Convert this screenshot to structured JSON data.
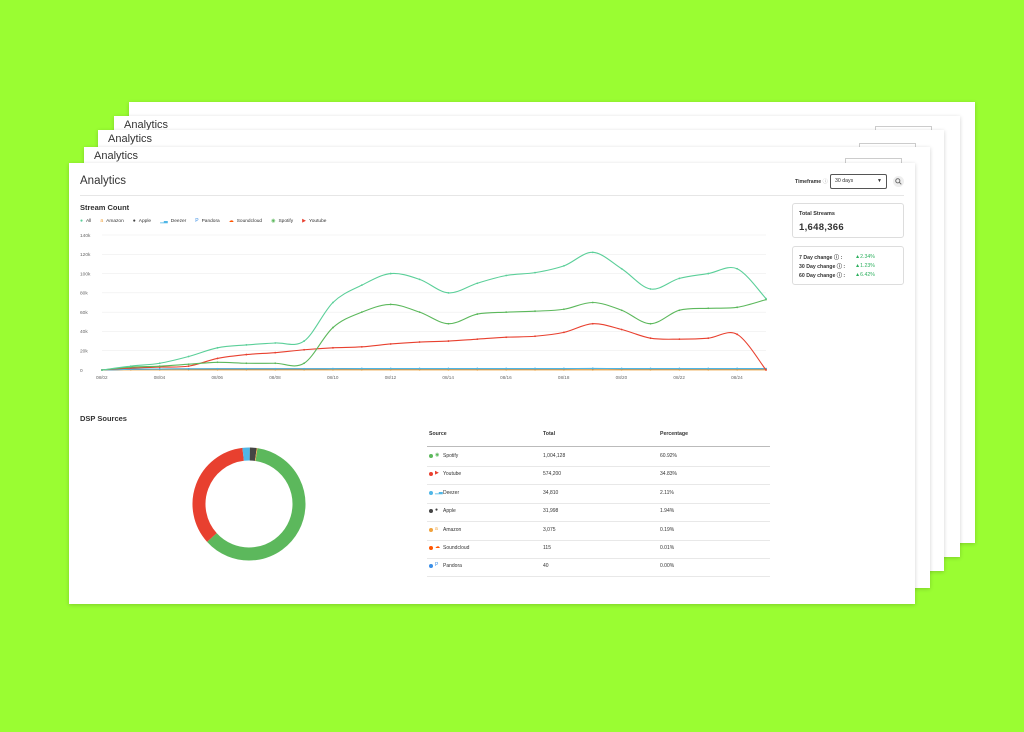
{
  "page": {
    "title": "Analytics",
    "timeframe_label": "Timeframe",
    "timeframe_info": "ⓘ",
    "timeframe_value": "30 days",
    "colors": {
      "background": "#9afd32",
      "all": "#5bcf99",
      "spotify": "#5cb85c",
      "youtube": "#e8402f",
      "deezer": "#4fb6e6",
      "apple": "#444444",
      "amazon": "#f0a23c",
      "soundcloud": "#ff5500",
      "pandora": "#3a8ee6"
    }
  },
  "back_sheets": {
    "titles": [
      "Analytics",
      "Analytics",
      "Analytics",
      "Analytics"
    ],
    "timeframe_label": "Timeframe"
  },
  "stream_count": {
    "title": "Stream Count",
    "legend": [
      {
        "label": "All",
        "icon": "dot-icon",
        "color": "#5bcf99"
      },
      {
        "label": "Amazon",
        "icon": "amazon-icon",
        "color": "#f0a23c"
      },
      {
        "label": "Apple",
        "icon": "apple-icon",
        "color": "#444444"
      },
      {
        "label": "Deezer",
        "icon": "deezer-icon",
        "color": "#4fb6e6"
      },
      {
        "label": "Pandora",
        "icon": "pandora-icon",
        "color": "#3a8ee6"
      },
      {
        "label": "Soundcloud",
        "icon": "soundcloud-icon",
        "color": "#ff5500"
      },
      {
        "label": "Spotify",
        "icon": "spotify-icon",
        "color": "#5cb85c"
      },
      {
        "label": "Youtube",
        "icon": "youtube-icon",
        "color": "#e8402f"
      }
    ]
  },
  "chart_data": {
    "type": "line",
    "title": "",
    "xlabel": "",
    "ylabel": "",
    "x": [
      "08/02",
      "08/03",
      "08/04",
      "08/05",
      "08/06",
      "08/07",
      "08/08",
      "08/09",
      "08/10",
      "08/11",
      "08/12",
      "08/13",
      "08/14",
      "08/15",
      "08/16",
      "08/17",
      "08/18",
      "08/19",
      "08/20",
      "08/21",
      "08/22",
      "08/23",
      "08/24",
      "08/25"
    ],
    "x_tick_labels": [
      "08/02",
      "08/04",
      "08/06",
      "08/08",
      "08/10",
      "08/12",
      "08/14",
      "08/16",
      "08/18",
      "08/20",
      "08/22",
      "08/24"
    ],
    "y_ticks": [
      "0",
      "20k",
      "40k",
      "60k",
      "80k",
      "100k",
      "120k",
      "140k"
    ],
    "ylim": [
      0,
      140000
    ],
    "grid": true,
    "legend": "top-left",
    "series": [
      {
        "name": "All",
        "color": "#5bcf99",
        "values": [
          0,
          4000,
          7000,
          14000,
          23000,
          26000,
          28000,
          30000,
          70000,
          88000,
          100000,
          94000,
          80000,
          90000,
          98000,
          101000,
          108000,
          122000,
          105000,
          84000,
          95000,
          100000,
          105000,
          74000
        ]
      },
      {
        "name": "Spotify",
        "color": "#5cb85c",
        "values": [
          0,
          3000,
          4000,
          6000,
          8000,
          7000,
          7000,
          7000,
          44000,
          60000,
          68000,
          60000,
          48000,
          58000,
          60000,
          61000,
          63000,
          70000,
          62000,
          48000,
          62000,
          64000,
          65000,
          73000
        ]
      },
      {
        "name": "Youtube",
        "color": "#e8402f",
        "values": [
          0,
          2000,
          3000,
          4000,
          12000,
          16000,
          18000,
          21000,
          23000,
          24000,
          27000,
          29000,
          30000,
          32000,
          34000,
          35000,
          39000,
          48000,
          42000,
          33000,
          32000,
          33000,
          37000,
          0
        ]
      },
      {
        "name": "Deezer",
        "color": "#4fb6e6",
        "values": [
          0,
          800,
          1000,
          1200,
          1300,
          1300,
          1300,
          1300,
          1400,
          1500,
          1500,
          1500,
          1500,
          1500,
          1500,
          1500,
          1500,
          1600,
          1500,
          1500,
          1500,
          1500,
          1500,
          1400
        ]
      },
      {
        "name": "Apple",
        "color": "#444444",
        "values": [
          0,
          800,
          1000,
          1100,
          1200,
          1200,
          1200,
          1200,
          1300,
          1400,
          1400,
          1400,
          1400,
          1400,
          1400,
          1400,
          1400,
          1500,
          1400,
          1400,
          1400,
          1400,
          1400,
          1300
        ]
      },
      {
        "name": "Amazon",
        "color": "#f0a23c",
        "values": [
          0,
          200,
          200,
          200,
          200,
          200,
          200,
          200,
          200,
          200,
          200,
          200,
          200,
          200,
          200,
          200,
          200,
          200,
          200,
          200,
          200,
          200,
          200,
          200
        ]
      }
    ]
  },
  "summary": {
    "total_label": "Total Streams",
    "total_value": "1,648,366",
    "changes": [
      {
        "label": "7 Day change",
        "info": "ⓘ :",
        "value": "▲2.34%"
      },
      {
        "label": "30 Day change",
        "info": "ⓘ :",
        "value": "▲1.23%"
      },
      {
        "label": "60 Day change",
        "info": "ⓘ :",
        "value": "▲6.42%"
      }
    ]
  },
  "dsp": {
    "title": "DSP Sources",
    "headers": [
      "Source",
      "Total",
      "Percentage"
    ],
    "rows": [
      {
        "source": "Spotify",
        "total": "1,004,128",
        "pct": "60.92%",
        "color": "#5cb85c",
        "icon": "spotify-icon",
        "share": 0.6092
      },
      {
        "source": "Youtube",
        "total": "574,200",
        "pct": "34.83%",
        "color": "#e8402f",
        "icon": "youtube-icon",
        "share": 0.3483
      },
      {
        "source": "Deezer",
        "total": "34,810",
        "pct": "2.11%",
        "color": "#4fb6e6",
        "icon": "deezer-icon",
        "share": 0.0211
      },
      {
        "source": "Apple",
        "total": "31,998",
        "pct": "1.94%",
        "color": "#444444",
        "icon": "apple-icon",
        "share": 0.0194
      },
      {
        "source": "Amazon",
        "total": "3,075",
        "pct": "0.19%",
        "color": "#f0a23c",
        "icon": "amazon-icon",
        "share": 0.0019
      },
      {
        "source": "Soundcloud",
        "total": "115",
        "pct": "0.01%",
        "color": "#ff5500",
        "icon": "soundcloud-icon",
        "share": 0.0001
      },
      {
        "source": "Pandora",
        "total": "40",
        "pct": "0.00%",
        "color": "#3a8ee6",
        "icon": "pandora-icon",
        "share": 0.0
      }
    ]
  }
}
